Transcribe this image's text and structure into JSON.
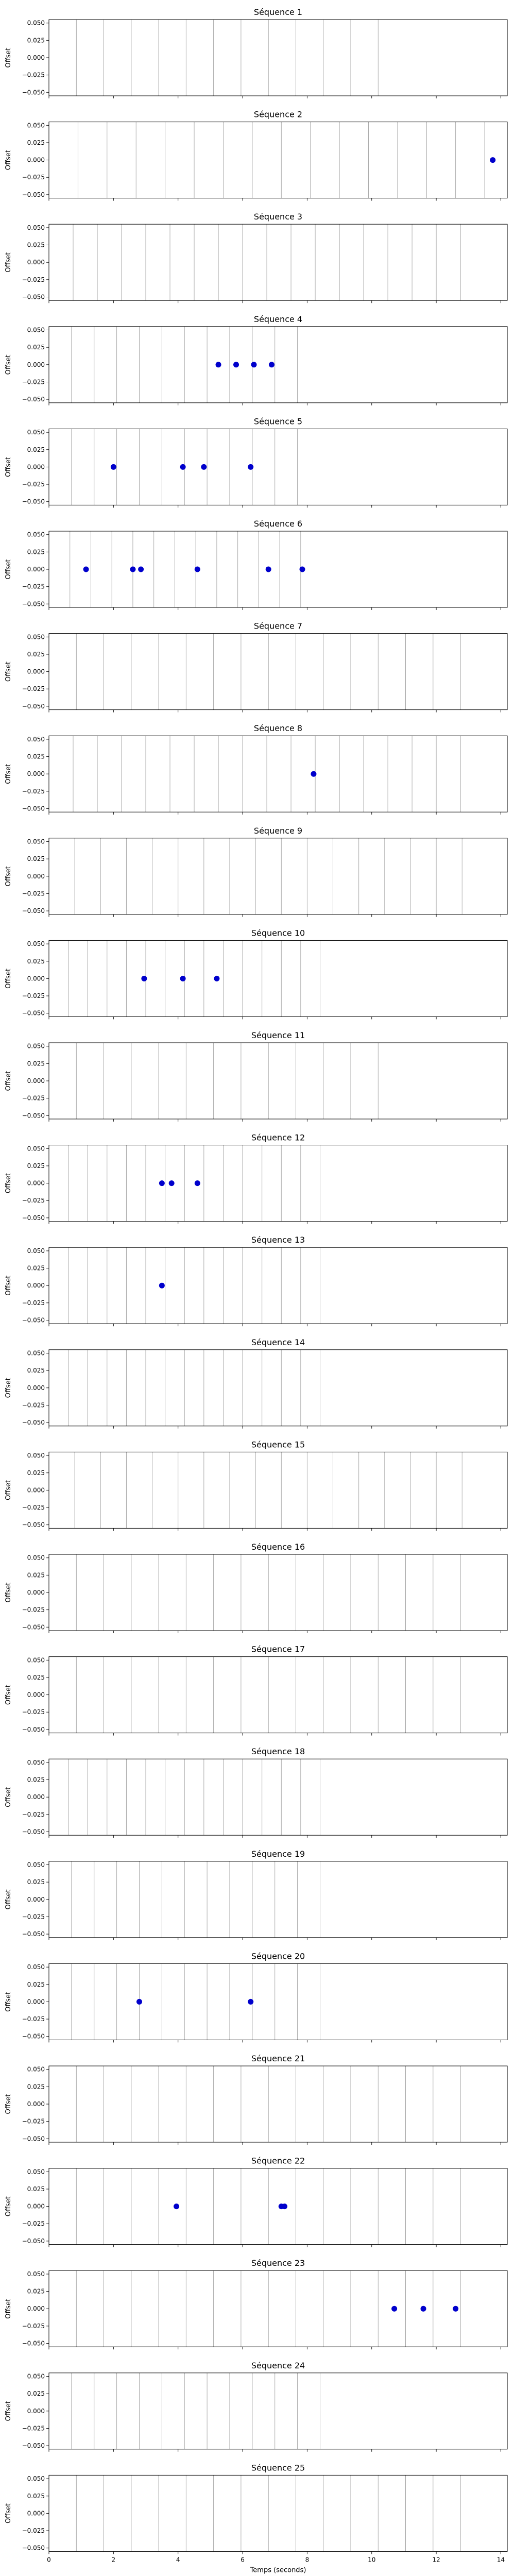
{
  "chart_data": {
    "type": "scatter",
    "xlabel": "Temps (seconds)",
    "ylabel": "Offset",
    "xlim": [
      0,
      14.2
    ],
    "ylim": [
      -0.055,
      0.055
    ],
    "xticks": [
      0,
      2,
      4,
      6,
      8,
      10,
      12,
      14
    ],
    "yticks": [
      0.05,
      0.025,
      0,
      -0.025,
      -0.05
    ],
    "yticklabels": [
      "0.050",
      "0.025",
      "0.000",
      "−0.025",
      "−0.050"
    ],
    "marker_color": "#0000cc",
    "line_color": "#a0a0a0",
    "panels": [
      {
        "title": "Séquence 1",
        "vlines": [
          0.85,
          1.7,
          2.55,
          3.4,
          4.25,
          5.1,
          5.95,
          6.8,
          7.65,
          8.5,
          9.35,
          10.2
        ],
        "points": []
      },
      {
        "title": "Séquence 2",
        "vlines": [
          0.9,
          1.8,
          2.7,
          3.6,
          4.5,
          5.4,
          6.3,
          7.2,
          8.1,
          9.0,
          9.9,
          10.8,
          11.7,
          12.6,
          13.5
        ],
        "points": [
          [
            13.75,
            0
          ]
        ]
      },
      {
        "title": "Séquence 3",
        "vlines": [
          0.75,
          1.5,
          2.25,
          3.0,
          3.75,
          4.5,
          5.25,
          6.0,
          6.75,
          7.5,
          8.25,
          9.0,
          9.75,
          10.5,
          11.25,
          12.0,
          12.75
        ],
        "points": []
      },
      {
        "title": "Séquence 4",
        "vlines": [
          0.7,
          1.4,
          2.1,
          2.8,
          3.5,
          4.2,
          4.9,
          5.6,
          6.3,
          7.0,
          7.7
        ],
        "points": [
          [
            5.25,
            0
          ],
          [
            5.8,
            0
          ],
          [
            6.35,
            0
          ],
          [
            6.9,
            0
          ]
        ]
      },
      {
        "title": "Séquence 5",
        "vlines": [
          0.7,
          1.4,
          2.1,
          2.8,
          3.5,
          4.2,
          4.9,
          5.6,
          6.3,
          7.0,
          7.7
        ],
        "points": [
          [
            2.0,
            0
          ],
          [
            4.15,
            0
          ],
          [
            4.8,
            0
          ],
          [
            6.25,
            0
          ]
        ]
      },
      {
        "title": "Séquence 6",
        "vlines": [
          0.65,
          1.3,
          1.95,
          2.6,
          3.25,
          3.9,
          4.55,
          5.2,
          5.85,
          6.5,
          7.15,
          7.8
        ],
        "points": [
          [
            1.15,
            0
          ],
          [
            2.6,
            0
          ],
          [
            2.85,
            0
          ],
          [
            4.6,
            0
          ],
          [
            6.8,
            0
          ],
          [
            7.85,
            0
          ]
        ]
      },
      {
        "title": "Séquence 7",
        "vlines": [
          0.85,
          1.7,
          2.55,
          3.4,
          4.25,
          5.1,
          5.95,
          6.8,
          7.65,
          8.5,
          9.35,
          10.2,
          11.05,
          11.9,
          12.75
        ],
        "points": []
      },
      {
        "title": "Séquence 8",
        "vlines": [
          0.75,
          1.5,
          2.25,
          3.0,
          3.75,
          4.5,
          5.25,
          6.0,
          6.75,
          7.5,
          8.25,
          9.0,
          9.75,
          10.5,
          11.25,
          12.0,
          12.75
        ],
        "points": [
          [
            8.2,
            0
          ]
        ]
      },
      {
        "title": "Séquence 9",
        "vlines": [
          0.8,
          1.6,
          2.4,
          3.2,
          4.0,
          4.8,
          5.6,
          6.4,
          7.2,
          8.0,
          8.8,
          9.6,
          10.4,
          11.2,
          12.0,
          12.8
        ],
        "points": []
      },
      {
        "title": "Séquence 10",
        "vlines": [
          0.6,
          1.2,
          1.8,
          2.4,
          3.0,
          3.6,
          4.2,
          4.8,
          5.4,
          6.0,
          6.6,
          7.2,
          7.8,
          8.4
        ],
        "points": [
          [
            2.95,
            0
          ],
          [
            4.15,
            0
          ],
          [
            5.2,
            0
          ]
        ]
      },
      {
        "title": "Séquence 11",
        "vlines": [
          0.85,
          1.7,
          2.55,
          3.4,
          4.25,
          5.1,
          5.95,
          6.8,
          7.65,
          8.5,
          9.35,
          10.2
        ],
        "points": []
      },
      {
        "title": "Séquence 12",
        "vlines": [
          0.6,
          1.2,
          1.8,
          2.4,
          3.0,
          3.6,
          4.2,
          4.8,
          5.4,
          6.0,
          6.6,
          7.2,
          7.8,
          8.4
        ],
        "points": [
          [
            3.5,
            0
          ],
          [
            3.8,
            0
          ],
          [
            4.6,
            0
          ]
        ]
      },
      {
        "title": "Séquence 13",
        "vlines": [
          0.6,
          1.2,
          1.8,
          2.4,
          3.0,
          3.6,
          4.2,
          4.8,
          5.4,
          6.0,
          6.6,
          7.2,
          7.8,
          8.4
        ],
        "points": [
          [
            3.5,
            0
          ]
        ]
      },
      {
        "title": "Séquence 14",
        "vlines": [
          0.6,
          1.2,
          1.8,
          2.4,
          3.0,
          3.6,
          4.2,
          4.8,
          5.4,
          6.0,
          6.6,
          7.2,
          7.8,
          8.4
        ],
        "points": []
      },
      {
        "title": "Séquence 15",
        "vlines": [
          0.8,
          1.6,
          2.4,
          3.2,
          4.0,
          4.8,
          5.6,
          6.4,
          7.2,
          8.0,
          8.8,
          9.6,
          10.4,
          11.2,
          12.0,
          12.8
        ],
        "points": []
      },
      {
        "title": "Séquence 16",
        "vlines": [
          0.85,
          1.7,
          2.55,
          3.4,
          4.25,
          5.1,
          5.95,
          6.8,
          7.65,
          8.5,
          9.35,
          10.2,
          11.05,
          11.9,
          12.75
        ],
        "points": []
      },
      {
        "title": "Séquence 17",
        "vlines": [
          0.85,
          1.7,
          2.55,
          3.4,
          4.25,
          5.1,
          5.95,
          6.8,
          7.65,
          8.5,
          9.35,
          10.2,
          11.05,
          11.9,
          12.75
        ],
        "points": []
      },
      {
        "title": "Séquence 18",
        "vlines": [
          0.6,
          1.2,
          1.8,
          2.4,
          3.0,
          3.6,
          4.2,
          4.8,
          5.4,
          6.0,
          6.6,
          7.2,
          7.8,
          8.4
        ],
        "points": []
      },
      {
        "title": "Séquence 19",
        "vlines": [
          0.7,
          1.4,
          2.1,
          2.8,
          3.5,
          4.2,
          4.9,
          5.6,
          6.3,
          7.0,
          7.7,
          8.4
        ],
        "points": []
      },
      {
        "title": "Séquence 20",
        "vlines": [
          0.7,
          1.4,
          2.1,
          2.8,
          3.5,
          4.2,
          4.9,
          5.6,
          6.3,
          7.0,
          7.7,
          8.4
        ],
        "points": [
          [
            2.8,
            0
          ],
          [
            6.25,
            0
          ]
        ]
      },
      {
        "title": "Séquence 21",
        "vlines": [
          0.85,
          1.7,
          2.55,
          3.4,
          4.25,
          5.1,
          5.95,
          6.8,
          7.65,
          8.5,
          9.35,
          10.2,
          11.05,
          11.9,
          12.75
        ],
        "points": []
      },
      {
        "title": "Séquence 22",
        "vlines": [
          0.85,
          1.7,
          2.55,
          3.4,
          4.25,
          5.1,
          5.95,
          6.8,
          7.65,
          8.5,
          9.35,
          10.2,
          11.05,
          11.9,
          12.75
        ],
        "points": [
          [
            3.95,
            0
          ],
          [
            7.2,
            0
          ],
          [
            7.3,
            0
          ]
        ]
      },
      {
        "title": "Séquence 23",
        "vlines": [
          0.85,
          1.7,
          2.55,
          3.4,
          4.25,
          5.1,
          5.95,
          6.8,
          7.65,
          8.5,
          9.35,
          10.2,
          11.05,
          11.9,
          12.75
        ],
        "points": [
          [
            10.7,
            0
          ],
          [
            11.6,
            0
          ],
          [
            12.6,
            0
          ]
        ]
      },
      {
        "title": "Séquence 24",
        "vlines": [
          0.7,
          1.4,
          2.1,
          2.8,
          3.5,
          4.2,
          4.9,
          5.6,
          6.3,
          7.0,
          7.7,
          8.4
        ],
        "points": []
      },
      {
        "title": "Séquence 25",
        "vlines": [
          0.85,
          1.7,
          2.55,
          3.4,
          4.25,
          5.1,
          5.95,
          6.8,
          7.65,
          8.5,
          9.35,
          10.2,
          11.05,
          11.9,
          12.75
        ],
        "points": []
      }
    ]
  }
}
